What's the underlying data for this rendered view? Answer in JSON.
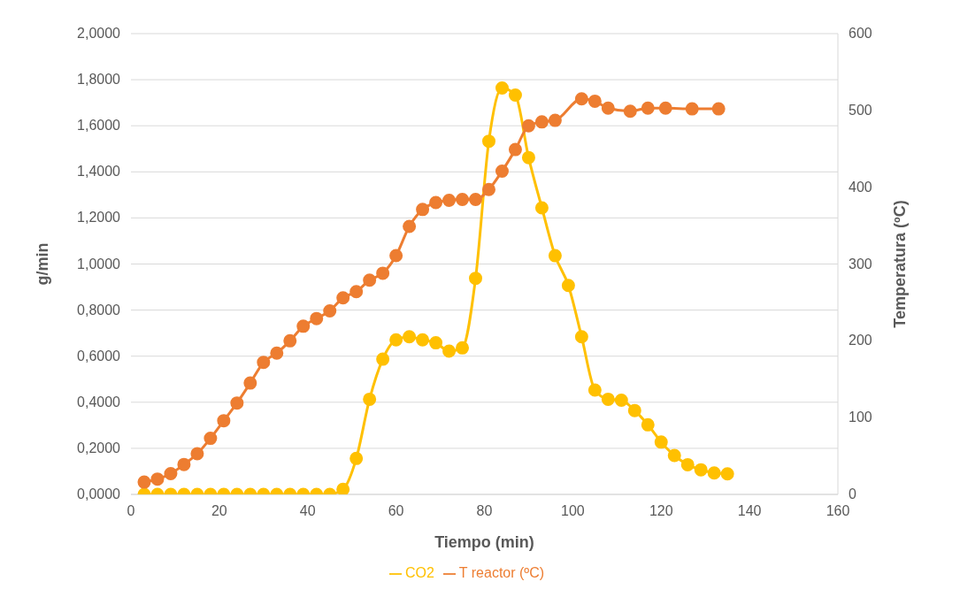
{
  "chart_data": {
    "type": "line",
    "xlabel": "Tiempo (min)",
    "ylabel": "g/min",
    "y2label": "Temperatura (ºC)",
    "xlim": [
      0,
      160
    ],
    "xticks": [
      0,
      20,
      40,
      60,
      80,
      100,
      120,
      140,
      160
    ],
    "ylim": [
      0,
      2
    ],
    "yticks": [
      {
        "value": 0,
        "label": "0,0000"
      },
      {
        "value": 0.2,
        "label": "0,2000"
      },
      {
        "value": 0.4,
        "label": "0,4000"
      },
      {
        "value": 0.6,
        "label": "0,6000"
      },
      {
        "value": 0.8,
        "label": "0,8000"
      },
      {
        "value": 1,
        "label": "1,0000"
      },
      {
        "value": 1.2,
        "label": "1,2000"
      },
      {
        "value": 1.4,
        "label": "1,4000"
      },
      {
        "value": 1.6,
        "label": "1,6000"
      },
      {
        "value": 1.8,
        "label": "1,8000"
      },
      {
        "value": 2,
        "label": "2,0000"
      }
    ],
    "y2lim": [
      0,
      600
    ],
    "y2ticks": [
      0,
      100,
      200,
      300,
      400,
      500,
      600
    ],
    "grid": "y",
    "legend": "bottom",
    "marker": "circle",
    "line_style": "solid",
    "series": [
      {
        "name": "CO2",
        "color": "#ffc000",
        "x": [
          3,
          6,
          9,
          12,
          15,
          18,
          21,
          24,
          27,
          30,
          33,
          36,
          39,
          42,
          45,
          48,
          51,
          54,
          57,
          60,
          63,
          66,
          69,
          72,
          75,
          78,
          81,
          84,
          87,
          90,
          93,
          96,
          99,
          102,
          105,
          108,
          111,
          114,
          117,
          120,
          123,
          126,
          129,
          132,
          135
        ],
        "values": [
          0,
          0,
          0,
          0,
          0,
          0,
          0,
          0,
          0,
          0,
          0,
          0,
          0,
          0,
          0,
          0.022,
          0.156,
          0.413,
          0.587,
          0.671,
          0.684,
          0.671,
          0.658,
          0.622,
          0.636,
          0.938,
          1.533,
          1.764,
          1.733,
          1.462,
          1.244,
          1.036,
          0.907,
          0.684,
          0.453,
          0.413,
          0.409,
          0.364,
          0.302,
          0.227,
          0.169,
          0.129,
          0.107,
          0.093,
          0.089
        ]
      },
      {
        "name": "T reactor (ºC)",
        "color": "#ed7d31",
        "axis": "y2",
        "x": [
          3,
          6,
          9,
          12,
          15,
          18,
          21,
          24,
          27,
          30,
          33,
          36,
          39,
          42,
          45,
          48,
          51,
          54,
          57,
          60,
          63,
          66,
          69,
          72,
          75,
          78,
          81,
          84,
          87,
          90,
          93,
          96,
          102,
          105,
          108,
          113,
          117,
          121,
          127,
          133
        ],
        "values": [
          16,
          20,
          27,
          39,
          53,
          73,
          96,
          119,
          145,
          172,
          184,
          200,
          219,
          229,
          239,
          256,
          264,
          279,
          288,
          311,
          349,
          371,
          380,
          383,
          384,
          384,
          397,
          421,
          449,
          480,
          485,
          487,
          515,
          512,
          503,
          499,
          503,
          503,
          502,
          502
        ]
      }
    ]
  }
}
